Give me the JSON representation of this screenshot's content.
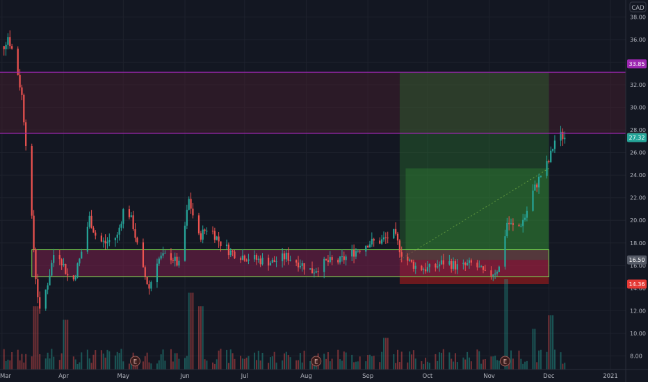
{
  "colors": {
    "background": "#131722",
    "grid": "#1e222d",
    "up": "#26a69a",
    "down": "#ef5350",
    "resistance_line": "#9c27b0",
    "axis_text": "#b2b5be",
    "support_box": "#7cd650",
    "profit_zone": "#2e7d32",
    "loss_zone": "#b71c1c"
  },
  "chart_data": {
    "type": "candlestick",
    "currency": "CAD",
    "ylim": [
      6.8,
      39.5
    ],
    "y_ticks": [
      "38.00",
      "36.00",
      "34.00",
      "32.00",
      "30.00",
      "28.00",
      "26.00",
      "24.00",
      "22.00",
      "20.00",
      "18.00",
      "16.00",
      "14.00",
      "12.00",
      "10.00",
      "8.00"
    ],
    "x_labels": [
      {
        "label": "Mar",
        "date": "2020-03-01"
      },
      {
        "label": "Apr",
        "date": "2020-04-01"
      },
      {
        "label": "May",
        "date": "2020-05-01"
      },
      {
        "label": "Jun",
        "date": "2020-06-01"
      },
      {
        "label": "Jul",
        "date": "2020-07-01"
      },
      {
        "label": "Aug",
        "date": "2020-08-01"
      },
      {
        "label": "Sep",
        "date": "2020-09-01"
      },
      {
        "label": "Oct",
        "date": "2020-10-01"
      },
      {
        "label": "Nov",
        "date": "2020-11-01"
      },
      {
        "label": "Dec",
        "date": "2020-12-01"
      },
      {
        "label": "2021",
        "date": "2021-01-01"
      }
    ],
    "price_badges": [
      {
        "label": "33.85",
        "value": 33.85,
        "color": "#9c27b0"
      },
      {
        "label": "27.34",
        "value": 27.34,
        "color": "#ef5350"
      },
      {
        "label": "27.32",
        "value": 27.32,
        "color": "#26a69a"
      },
      {
        "label": "16.50",
        "value": 16.5,
        "color": "#555a66"
      },
      {
        "label": "14.36",
        "value": 14.36,
        "color": "#e53935"
      }
    ],
    "horizontal_lines": [
      33.1,
      27.7
    ],
    "resistance_zone": [
      27.7,
      33.1
    ],
    "support_zone": {
      "low": 15.0,
      "high": 17.4,
      "from": "2020-03-16",
      "to": "2020-12-01"
    },
    "position": {
      "entry": 16.5,
      "target": 33.1,
      "stop": 14.36,
      "from": "2020-09-17",
      "to": "2020-12-01",
      "filled_to": 24.6,
      "filled_from": "2020-09-20"
    },
    "earnings_markers": [
      {
        "label": "E",
        "date": "2020-05-07"
      },
      {
        "label": "E",
        "date": "2020-08-06"
      },
      {
        "label": "E",
        "date": "2020-11-09"
      }
    ],
    "price_path": [
      [
        "2020-02-24",
        35.8
      ],
      [
        "2020-03-01",
        35.0
      ],
      [
        "2020-03-04",
        36.3
      ],
      [
        "2020-03-08",
        34.0
      ],
      [
        "2020-03-11",
        31.0
      ],
      [
        "2020-03-14",
        25.0
      ],
      [
        "2020-03-18",
        15.0
      ],
      [
        "2020-03-20",
        11.8
      ],
      [
        "2020-03-24",
        14.5
      ],
      [
        "2020-03-28",
        17.8
      ],
      [
        "2020-04-01",
        16.0
      ],
      [
        "2020-04-05",
        14.2
      ],
      [
        "2020-04-09",
        16.5
      ],
      [
        "2020-04-14",
        20.2
      ],
      [
        "2020-04-18",
        18.2
      ],
      [
        "2020-04-22",
        18.0
      ],
      [
        "2020-04-28",
        18.6
      ],
      [
        "2020-05-02",
        21.6
      ],
      [
        "2020-05-06",
        19.5
      ],
      [
        "2020-05-10",
        16.0
      ],
      [
        "2020-05-14",
        14.0
      ],
      [
        "2020-05-18",
        16.5
      ],
      [
        "2020-05-24",
        17.0
      ],
      [
        "2020-05-29",
        16.0
      ],
      [
        "2020-06-03",
        21.8
      ],
      [
        "2020-06-08",
        18.5
      ],
      [
        "2020-06-13",
        19.5
      ],
      [
        "2020-06-18",
        18.2
      ],
      [
        "2020-06-24",
        17.2
      ],
      [
        "2020-07-01",
        16.8
      ],
      [
        "2020-07-08",
        16.5
      ],
      [
        "2020-07-15",
        16.3
      ],
      [
        "2020-07-22",
        16.8
      ],
      [
        "2020-07-29",
        16.2
      ],
      [
        "2020-08-04",
        15.5
      ],
      [
        "2020-08-11",
        16.3
      ],
      [
        "2020-08-18",
        16.4
      ],
      [
        "2020-08-25",
        17.2
      ],
      [
        "2020-09-01",
        18.0
      ],
      [
        "2020-09-08",
        18.2
      ],
      [
        "2020-09-14",
        18.8
      ],
      [
        "2020-09-19",
        16.7
      ],
      [
        "2020-09-26",
        15.8
      ],
      [
        "2020-10-03",
        15.7
      ],
      [
        "2020-10-10",
        16.4
      ],
      [
        "2020-10-17",
        15.8
      ],
      [
        "2020-10-24",
        16.2
      ],
      [
        "2020-10-31",
        15.0
      ],
      [
        "2020-11-06",
        15.8
      ],
      [
        "2020-11-10",
        19.8
      ],
      [
        "2020-11-15",
        19.2
      ],
      [
        "2020-11-19",
        20.3
      ],
      [
        "2020-11-23",
        22.5
      ],
      [
        "2020-11-27",
        24.0
      ],
      [
        "2020-12-01",
        25.2
      ],
      [
        "2020-12-05",
        27.7
      ],
      [
        "2020-12-09",
        27.34
      ]
    ],
    "volume_spikes": [
      {
        "date": "2020-03-18",
        "h": 0.7
      },
      {
        "date": "2020-04-02",
        "h": 0.55
      },
      {
        "date": "2020-06-04",
        "h": 0.85
      },
      {
        "date": "2020-06-09",
        "h": 0.7
      },
      {
        "date": "2020-09-10",
        "h": 0.35
      },
      {
        "date": "2020-11-09",
        "h": 1.0
      },
      {
        "date": "2020-11-23",
        "h": 0.45
      },
      {
        "date": "2020-12-02",
        "h": 0.6
      }
    ]
  }
}
